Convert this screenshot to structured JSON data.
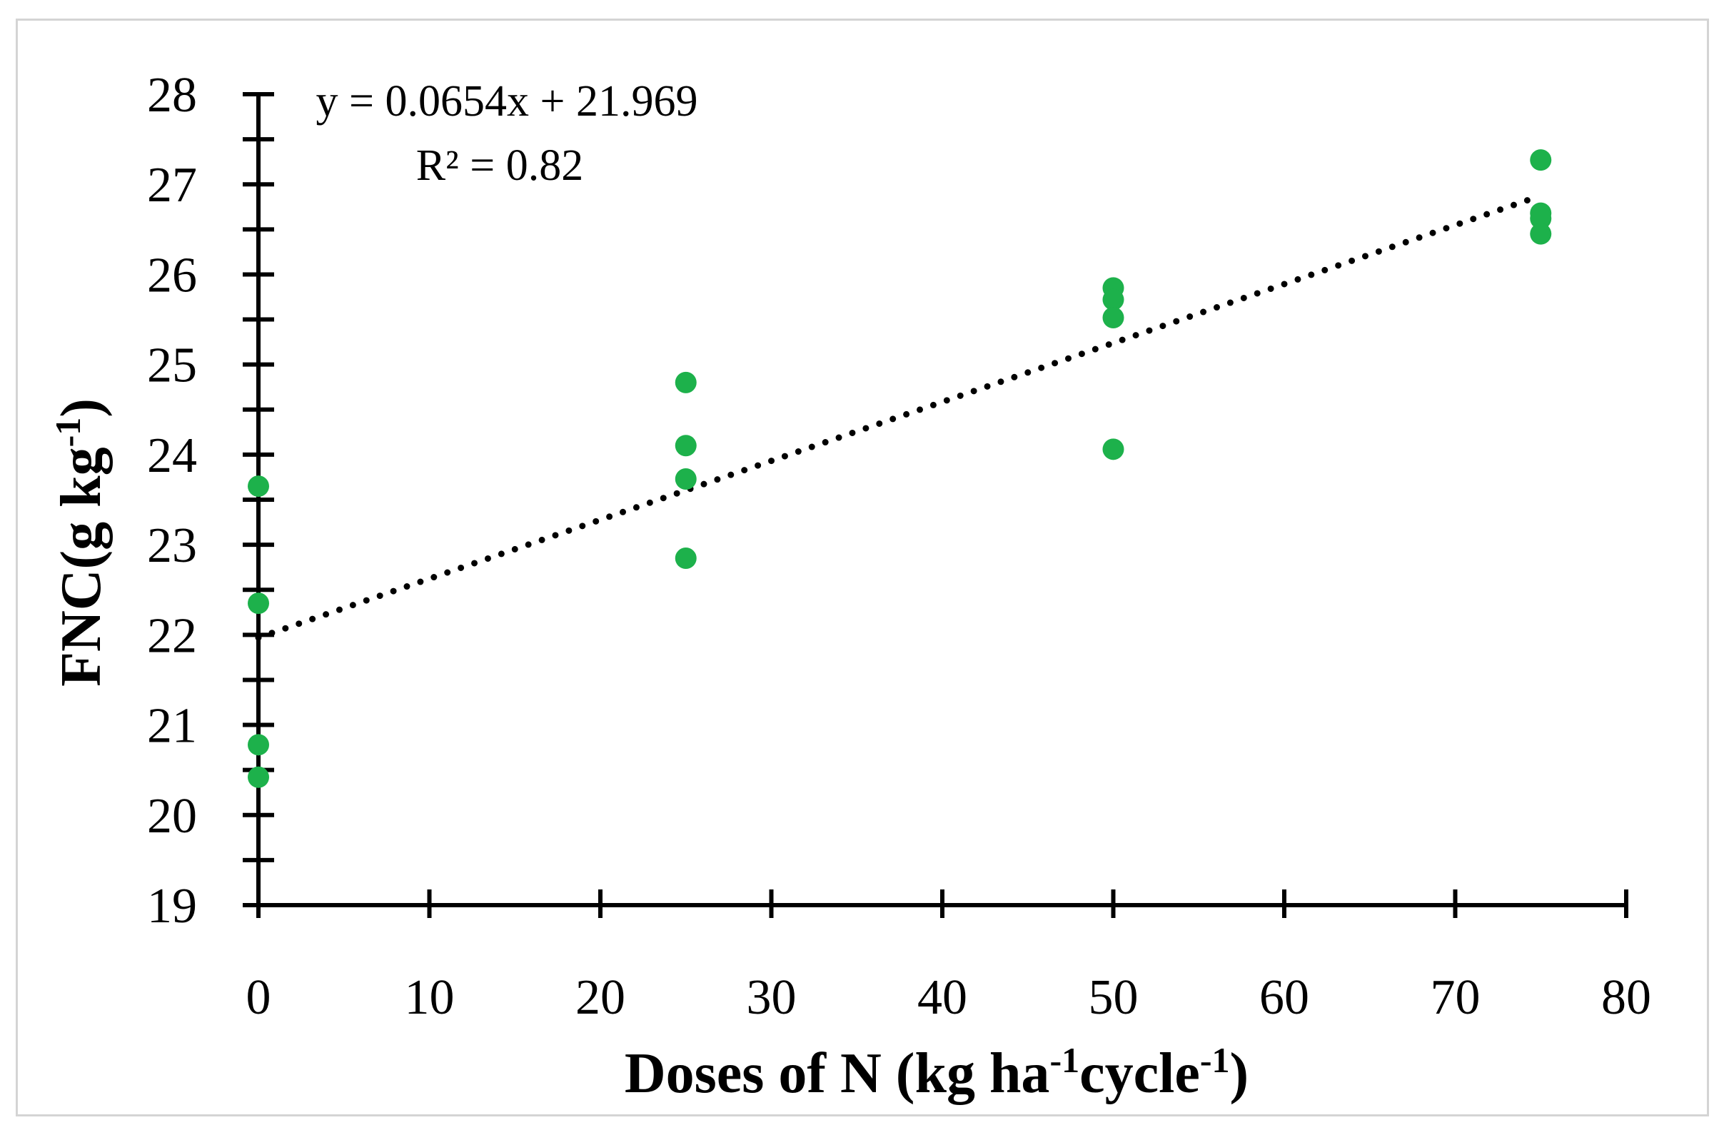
{
  "chart_data": {
    "type": "scatter",
    "title": "",
    "xlabel": {
      "main": "Doses of N (kg ha",
      "sup1": "-1",
      "mid": "cycle",
      "sup2": "-1",
      "end": ")"
    },
    "ylabel": {
      "main": "FNC(g kg",
      "sup": "-1",
      "end": ")"
    },
    "xlim": [
      0,
      80
    ],
    "ylim": [
      19,
      28
    ],
    "x_ticks": [
      0,
      10,
      20,
      30,
      40,
      50,
      60,
      70,
      80
    ],
    "y_ticks": [
      19,
      20,
      21,
      22,
      23,
      24,
      25,
      26,
      27,
      28
    ],
    "series": [
      {
        "name": "FNC",
        "color": "#1db14b",
        "points": [
          {
            "x": 0,
            "y": 23.65
          },
          {
            "x": 0,
            "y": 22.35
          },
          {
            "x": 0,
            "y": 20.78
          },
          {
            "x": 0,
            "y": 20.42
          },
          {
            "x": 25,
            "y": 24.8
          },
          {
            "x": 25,
            "y": 24.1
          },
          {
            "x": 25,
            "y": 23.73
          },
          {
            "x": 25,
            "y": 22.85
          },
          {
            "x": 50,
            "y": 25.85
          },
          {
            "x": 50,
            "y": 25.72
          },
          {
            "x": 50,
            "y": 25.52
          },
          {
            "x": 50,
            "y": 24.06
          },
          {
            "x": 75,
            "y": 27.27
          },
          {
            "x": 75,
            "y": 26.68
          },
          {
            "x": 75,
            "y": 26.62
          },
          {
            "x": 75,
            "y": 26.45
          }
        ]
      }
    ],
    "trendline": {
      "type": "linear",
      "slope": 0.0654,
      "intercept": 21.969,
      "x_range": [
        0,
        75
      ],
      "color": "#000000",
      "style": "dotted"
    },
    "annotations": {
      "equation": "y = 0.0654x + 21.969",
      "r_squared": "R² = 0.82"
    },
    "grid": false
  }
}
